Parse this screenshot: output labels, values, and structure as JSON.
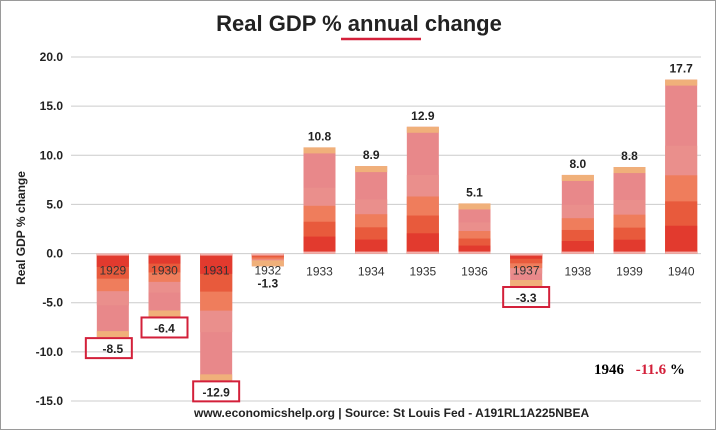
{
  "chart_data": {
    "type": "bar",
    "title": "Real GDP % annual change",
    "ylabel": "Real GDP % change",
    "xlabel": "",
    "categories": [
      "1929",
      "1930",
      "1931",
      "1932",
      "1933",
      "1934",
      "1935",
      "1936",
      "1937",
      "1938",
      "1939",
      "1940"
    ],
    "values": [
      -8.5,
      -6.4,
      -12.9,
      -1.3,
      10.8,
      8.9,
      12.9,
      5.1,
      -3.3,
      8.0,
      8.8,
      17.7
    ],
    "value_labels": [
      "-8.5",
      "-6.4",
      "-12.9",
      "-1.3",
      "10.8",
      "8.9",
      "12.9",
      "5.1",
      "-3.3",
      "8.0",
      "8.8",
      "17.7"
    ],
    "ylim": [
      -15,
      20
    ],
    "yticks": [
      "-15.0",
      "-10.0",
      "-5.0",
      "0.0",
      "5.0",
      "10.0",
      "15.0",
      "20.0"
    ],
    "ytick_values": [
      -15,
      -10,
      -5,
      0,
      5,
      10,
      15,
      20
    ],
    "boxed_labels": [
      "1929",
      "1930",
      "1931",
      "1937"
    ],
    "grid": "horizontal",
    "source": "www.economicshelp.org | Source: St Louis Fed - A191RL1A225NBEA",
    "annotation": {
      "year": "1946",
      "value": "-11.6",
      "unit": "%"
    },
    "colors": {
      "bar_outer": "#e8888a",
      "bar_band_2": "#ea8f8c",
      "bar_band_3": "#ef7d5c",
      "bar_band_4": "#e85a3c",
      "bar_band_5": "#e23a2e",
      "bar_cap": "#f0b07a",
      "highlight_box": "#d3203a",
      "title_underline": "#d3203a",
      "annotation_value": "#d3203a",
      "grid": "#cccccc"
    }
  }
}
